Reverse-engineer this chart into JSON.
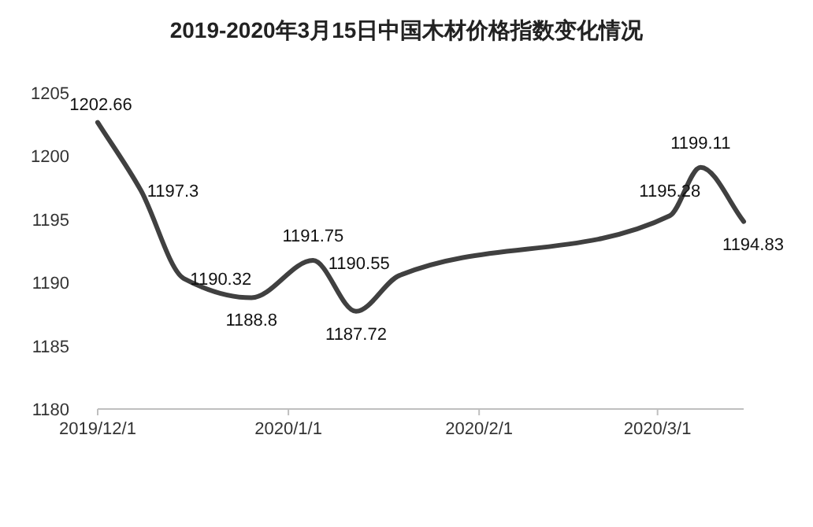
{
  "chart_data": {
    "type": "line",
    "title": "2019-2020年3月15日中国木材价格指数变化情况",
    "x": [
      "2019-12-01",
      "2019-12-08",
      "2019-12-15",
      "2019-12-26",
      "2020-01-05",
      "2020-01-12",
      "2020-01-19",
      "2020-03-03",
      "2020-03-08",
      "2020-03-15"
    ],
    "series": [
      {
        "color": "#404040",
        "values": [
          1202.66,
          1197.3,
          1190.32,
          1188.8,
          1191.75,
          1187.72,
          1190.55,
          1195.28,
          1199.11,
          1194.83
        ]
      }
    ],
    "xlim": [
      "2019-12-01",
      "2020-03-15"
    ],
    "xticks": [
      {
        "value": "2019-12-01",
        "label": "2019/12/1"
      },
      {
        "value": "2020-01-01",
        "label": "2020/1/1"
      },
      {
        "value": "2020-02-01",
        "label": "2020/2/1"
      },
      {
        "value": "2020-03-01",
        "label": "2020/3/1"
      }
    ],
    "ylim": [
      1180,
      1205
    ],
    "yticks": [
      1180,
      1185,
      1190,
      1195,
      1200,
      1205
    ],
    "data_labels": true,
    "grid": false,
    "marker": "none",
    "line_style": "solid"
  }
}
